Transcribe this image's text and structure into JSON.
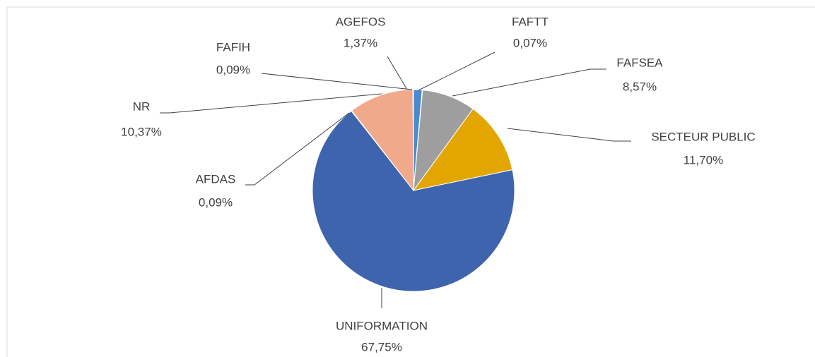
{
  "chart_data": {
    "type": "pie",
    "categories": [
      "AGEFOS",
      "FAFTT",
      "FAFSEA",
      "SECTEUR PUBLIC",
      "UNIFORMATION",
      "AFDAS",
      "NR",
      "FAFIH"
    ],
    "values": [
      1.37,
      0.07,
      8.57,
      11.7,
      67.75,
      0.09,
      10.37,
      0.09
    ],
    "value_labels": [
      "1,37%",
      "0,07%",
      "8,57%",
      "11,70%",
      "67,75%",
      "0,09%",
      "10,37%",
      "0,09%"
    ],
    "colors": [
      "#4a8bd0",
      "#264478",
      "#9e9e9e",
      "#e3a600",
      "#3d64ad",
      "#6d8fc9",
      "#f0a98b",
      "#c2c2c2"
    ]
  }
}
